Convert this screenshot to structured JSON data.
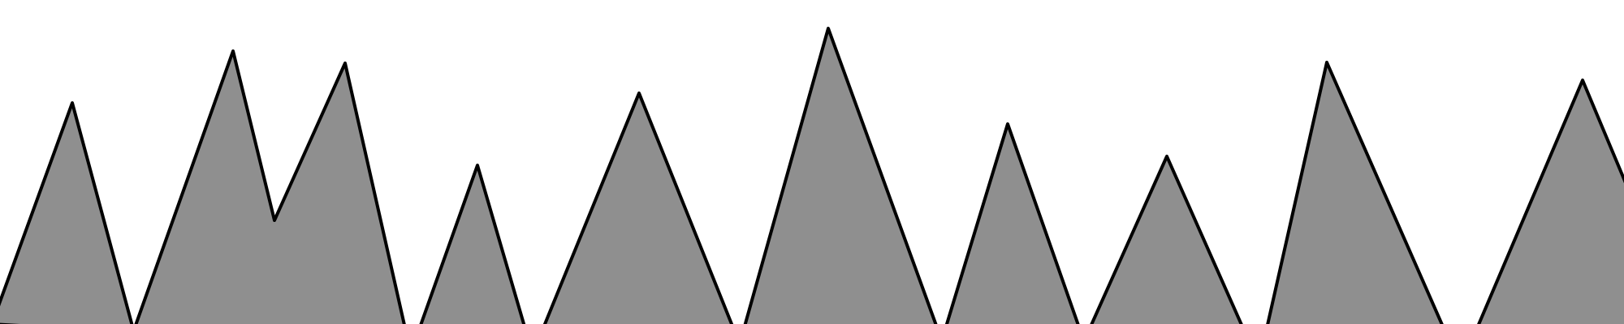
{
  "scene": {
    "background_color": "#ffffff",
    "fill_color": "#8f8f8f",
    "stroke_color": "#000000",
    "shapes": [
      {
        "name": "mountain-1"
      },
      {
        "name": "mountain-2-double-peak"
      },
      {
        "name": "mountain-3"
      },
      {
        "name": "mountain-4"
      },
      {
        "name": "mountain-5"
      },
      {
        "name": "mountain-6"
      },
      {
        "name": "mountain-7"
      },
      {
        "name": "mountain-8"
      },
      {
        "name": "mountain-9"
      }
    ]
  }
}
